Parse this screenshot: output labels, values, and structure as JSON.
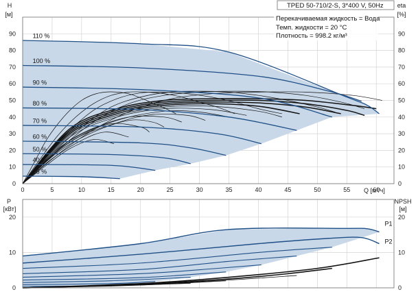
{
  "chart_data": [
    {
      "type": "line",
      "title": "TPED 50-710/2-S, 3*400 V, 50Hz",
      "info": [
        "Перекачиваемая жидкость = Вода",
        "Темп. жидкости = 20 °C",
        "Плотность = 998.2 кг/м³"
      ],
      "xlabel": "Q [м³/ч]",
      "ylabel": [
        "H",
        "[м]"
      ],
      "ylabel_right": [
        "eta",
        "[%]"
      ],
      "xlim": [
        0,
        63
      ],
      "ylim": [
        0,
        100
      ],
      "xticks": [
        0,
        5,
        10,
        15,
        20,
        25,
        30,
        35,
        40,
        45,
        50,
        55,
        60
      ],
      "yticks": [
        0,
        10,
        20,
        30,
        40,
        50,
        60,
        70,
        80,
        90
      ],
      "grid": true,
      "qh_curves": [
        {
          "label": "110 %",
          "x": [
            0,
            20,
            35,
            55,
            58.5,
            60.5
          ],
          "y": [
            86,
            84,
            79,
            52,
            47,
            42
          ]
        },
        {
          "label": "100 %",
          "x": [
            0,
            20,
            40,
            52,
            57.5
          ],
          "y": [
            71,
            69.5,
            64.5,
            55.5,
            49.5
          ]
        },
        {
          "label": "90 %",
          "x": [
            0,
            20,
            40,
            52.5
          ],
          "y": [
            58,
            56.5,
            51.5,
            40
          ]
        },
        {
          "label": "80 %",
          "x": [
            0,
            20,
            35,
            46.5
          ],
          "y": [
            45.5,
            44.5,
            40,
            32
          ]
        },
        {
          "label": "70 %",
          "x": [
            0,
            20,
            33,
            40.5
          ],
          "y": [
            35,
            34,
            30,
            24
          ]
        },
        {
          "label": "60 %",
          "x": [
            0,
            20,
            28.5,
            34.5
          ],
          "y": [
            25.5,
            24.5,
            21.5,
            17
          ]
        },
        {
          "label": "50 %",
          "x": [
            0,
            15,
            24,
            28.5
          ],
          "y": [
            18,
            17.5,
            15.5,
            12
          ]
        },
        {
          "label": "40 %",
          "x": [
            0,
            15,
            22.5
          ],
          "y": [
            11.5,
            11,
            8
          ]
        },
        {
          "label": "25 %",
          "x": [
            0,
            10,
            16.5
          ],
          "y": [
            4.5,
            4.2,
            3
          ]
        }
      ],
      "envelope": {
        "x": [
          0,
          20,
          35,
          55,
          58.5,
          60.5,
          52.5,
          46.5,
          40.5,
          34.5,
          28.5,
          22.5,
          16.5,
          0
        ],
        "y": [
          86,
          84,
          79,
          52,
          47,
          42,
          40,
          32,
          24,
          17,
          12,
          8,
          3,
          4.5
        ]
      },
      "eta_curves": [
        {
          "x": [
            0,
            8,
            16,
            24,
            32,
            40,
            48,
            56,
            60
          ],
          "y": [
            0,
            33,
            45,
            50,
            51,
            51,
            50,
            47,
            45
          ],
          "bold": true
        },
        {
          "x": [
            0,
            8,
            16,
            24,
            32,
            40,
            48,
            55,
            58
          ],
          "y": [
            0,
            32,
            44,
            49,
            50,
            50,
            48,
            44,
            41
          ],
          "bold": true
        },
        {
          "x": [
            0,
            8,
            16,
            24,
            32,
            40,
            48,
            54
          ],
          "y": [
            0,
            31,
            43,
            48,
            49,
            48.5,
            46,
            42
          ],
          "bold": true
        },
        {
          "x": [
            0,
            8,
            16,
            24,
            32,
            40,
            47
          ],
          "y": [
            0,
            30,
            42,
            47,
            48,
            46.5,
            42
          ],
          "bold": true
        },
        {
          "x": [
            0,
            8,
            16,
            24,
            32,
            40,
            44
          ],
          "y": [
            0,
            29,
            41,
            46,
            46.5,
            43.5,
            40
          ]
        },
        {
          "x": [
            0,
            8,
            16,
            24,
            32,
            38
          ],
          "y": [
            0,
            28,
            40,
            45,
            44.5,
            41
          ]
        },
        {
          "x": [
            0,
            8,
            16,
            24,
            30,
            35
          ],
          "y": [
            0,
            26,
            38,
            43.5,
            43,
            40
          ]
        },
        {
          "x": [
            0,
            8,
            16,
            22,
            28,
            31
          ],
          "y": [
            0,
            25,
            36.5,
            41.5,
            41,
            38
          ]
        },
        {
          "x": [
            0,
            6,
            12,
            18,
            24,
            27
          ],
          "y": [
            0,
            21,
            33,
            40,
            40,
            37
          ]
        },
        {
          "x": [
            0,
            6,
            12,
            18,
            22,
            24
          ],
          "y": [
            0,
            19,
            31,
            38,
            37,
            34
          ]
        },
        {
          "x": [
            0,
            5,
            10,
            15,
            20,
            21.5
          ],
          "y": [
            0,
            17,
            29,
            36,
            34,
            31
          ]
        },
        {
          "x": [
            0,
            5,
            10,
            14,
            18
          ],
          "y": [
            0,
            15,
            26,
            31,
            28
          ]
        },
        {
          "x": [
            0,
            4,
            8,
            12,
            15.5
          ],
          "y": [
            0,
            11,
            21,
            26.5,
            24
          ]
        },
        {
          "x": [
            0,
            8,
            16,
            24,
            32,
            40,
            48,
            56,
            61
          ],
          "y": [
            0,
            23,
            40,
            50,
            54,
            55,
            55,
            53,
            50
          ]
        },
        {
          "x": [
            0,
            6,
            12,
            18,
            24,
            30,
            36,
            42,
            48,
            54,
            58
          ],
          "y": [
            0,
            20,
            37,
            48,
            53,
            55,
            55.5,
            55,
            53,
            49,
            45
          ]
        },
        {
          "x": [
            0,
            5,
            10,
            15,
            20,
            25,
            30,
            35,
            40,
            45,
            50,
            53
          ],
          "y": [
            0,
            18,
            34,
            46,
            52,
            55,
            55.5,
            55,
            53,
            50,
            46,
            43
          ]
        },
        {
          "x": [
            0,
            4,
            8,
            12,
            16,
            20,
            24,
            28,
            32,
            36,
            40,
            44
          ],
          "y": [
            0,
            17,
            32,
            44,
            51,
            54.5,
            55,
            54,
            52,
            49,
            45,
            42
          ]
        },
        {
          "x": [
            0,
            3,
            6,
            9,
            12,
            15,
            18,
            21,
            24,
            27,
            30,
            33,
            36
          ],
          "y": [
            0,
            15,
            29,
            40,
            48,
            53,
            55,
            55,
            54,
            52,
            49,
            46,
            42
          ]
        },
        {
          "x": [
            0,
            2,
            4,
            6,
            8,
            10,
            12,
            14,
            16,
            18,
            20,
            22,
            24,
            26
          ],
          "y": [
            0,
            13,
            26,
            36,
            44,
            50,
            53.5,
            55,
            55,
            54,
            51.5,
            48.5,
            45.5,
            42
          ]
        }
      ]
    },
    {
      "type": "line",
      "xlim": [
        0,
        63
      ],
      "ylim": [
        0,
        25
      ],
      "ylabel": [
        "P",
        "[кВт]"
      ],
      "ylabel_right": [
        "NPSH",
        "[м]"
      ],
      "yticks": [
        0,
        10,
        20
      ],
      "grid": true,
      "series": [
        {
          "name": "P1",
          "x": [
            0,
            20,
            35,
            55,
            58.5,
            60.5
          ],
          "y": [
            9,
            12.5,
            16.5,
            16.8,
            16.7,
            15.8
          ]
        },
        {
          "name": "P2",
          "x": [
            0,
            20,
            40,
            52,
            57.5,
            60.5
          ],
          "y": [
            7,
            9.5,
            12.5,
            14,
            14.2,
            12.5
          ]
        }
      ],
      "p_family": [
        {
          "x": [
            0,
            20,
            40,
            52.5
          ],
          "y": [
            5.5,
            7,
            10,
            11.5
          ]
        },
        {
          "x": [
            0,
            20,
            35,
            46.5
          ],
          "y": [
            4,
            5.2,
            7.5,
            9
          ]
        },
        {
          "x": [
            0,
            20,
            33,
            40.5
          ],
          "y": [
            3,
            4,
            5.5,
            6.5
          ]
        },
        {
          "x": [
            0,
            20,
            34.5
          ],
          "y": [
            2.2,
            2.9,
            4.5
          ]
        },
        {
          "x": [
            0,
            15,
            28.5
          ],
          "y": [
            1.5,
            2,
            3
          ]
        },
        {
          "x": [
            0,
            15,
            22.5
          ],
          "y": [
            0.9,
            1.2,
            1.8
          ]
        },
        {
          "x": [
            0,
            10,
            16.5
          ],
          "y": [
            0.4,
            0.5,
            0.8
          ]
        }
      ],
      "p_envelope": {
        "x": [
          0,
          20,
          35,
          55,
          58.5,
          60.5,
          52.5,
          46.5,
          40.5,
          34.5,
          28.5,
          22.5,
          16.5,
          0
        ],
        "y": [
          9,
          12.5,
          16.5,
          16.8,
          16.7,
          15.8,
          11.5,
          9,
          6.5,
          4.5,
          3,
          1.8,
          0.8,
          0.4
        ]
      },
      "npsh": [
        {
          "x": [
            0,
            20,
            35,
            50,
            60.5
          ],
          "y": [
            0,
            1.2,
            3,
            5.5,
            8.5
          ],
          "bold": true
        },
        {
          "x": [
            0,
            20,
            35,
            45,
            52.5
          ],
          "y": [
            0,
            1,
            2.5,
            4,
            5.5
          ],
          "bold": true
        },
        {
          "x": [
            0,
            20,
            35,
            46.5
          ],
          "y": [
            0,
            0.9,
            2.2,
            3.5
          ]
        },
        {
          "x": [
            0,
            20,
            34.5
          ],
          "y": [
            0,
            0.8,
            2
          ]
        },
        {
          "x": [
            0,
            15,
            28.5
          ],
          "y": [
            0,
            0.5,
            1.3
          ]
        }
      ]
    }
  ]
}
